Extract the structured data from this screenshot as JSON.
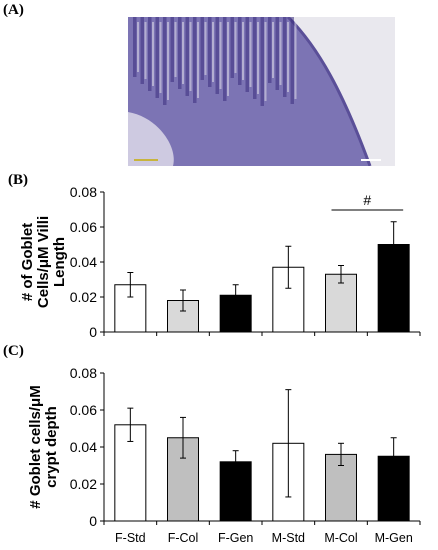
{
  "panels": {
    "a": "(A)",
    "b": "(B)",
    "c": "(C)"
  },
  "categories": [
    "F-Std",
    "F-Col",
    "F-Gen",
    "M-Std",
    "M-Col",
    "M-Gen"
  ],
  "colors": {
    "white": "#ffffff",
    "gray": "#d9d9d9",
    "gray_c": "#bfbfbf",
    "black": "#000000",
    "tissue": "#7c74b4",
    "nuclei": "#3a2e7e",
    "background": "#e9e8ee"
  },
  "chart_data": [
    {
      "type": "bar",
      "panel": "(B)",
      "ylabel": [
        "# of Goblet",
        "Cells/μM Villi",
        "Length"
      ],
      "ylim": [
        0,
        0.08
      ],
      "yticks": [
        "0",
        "0.02",
        "0.04",
        "0.06",
        "0.08"
      ],
      "categories": [
        "F-Std",
        "F-Col",
        "F-Gen",
        "M-Std",
        "M-Col",
        "M-Gen"
      ],
      "values": [
        0.027,
        0.018,
        0.021,
        0.037,
        0.033,
        0.05
      ],
      "errors": [
        0.007,
        0.006,
        0.006,
        0.012,
        0.005,
        0.013
      ],
      "fill_colors": [
        "#ffffff",
        "#d9d9d9",
        "#000000",
        "#ffffff",
        "#d9d9d9",
        "#000000"
      ],
      "annotations": [
        {
          "text": "#",
          "from": "M-Col",
          "to": "M-Gen"
        }
      ]
    },
    {
      "type": "bar",
      "panel": "(C)",
      "ylabel": [
        "# Goblet cells/μM",
        "crypt depth"
      ],
      "ylim": [
        0,
        0.08
      ],
      "yticks": [
        "0",
        "0.02",
        "0.04",
        "0.06",
        "0.08"
      ],
      "categories": [
        "F-Std",
        "F-Col",
        "F-Gen",
        "M-Std",
        "M-Col",
        "M-Gen"
      ],
      "values": [
        0.052,
        0.045,
        0.032,
        0.042,
        0.036,
        0.035
      ],
      "errors": [
        0.009,
        0.011,
        0.006,
        0.029,
        0.006,
        0.01
      ],
      "fill_colors": [
        "#ffffff",
        "#bfbfbf",
        "#000000",
        "#ffffff",
        "#bfbfbf",
        "#000000"
      ]
    }
  ]
}
